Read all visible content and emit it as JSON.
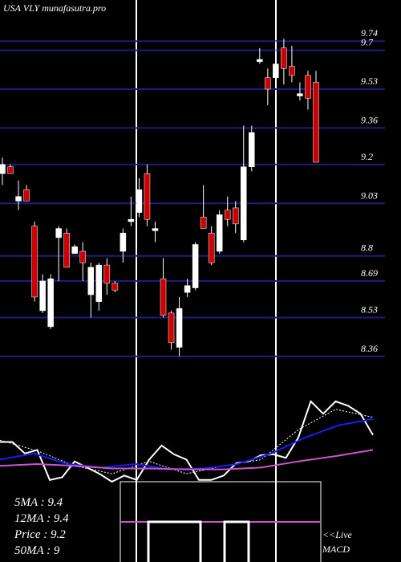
{
  "chart_data": {
    "type": "candlestick",
    "title": "USA VLY munafasutra.pro",
    "ylim": [
      8.3,
      9.92
    ],
    "yticks": [
      9.74,
      9.7,
      9.53,
      9.36,
      9.2,
      9.03,
      8.8,
      8.69,
      8.53,
      8.36
    ],
    "grid": true,
    "grid_color": "#1c1c80",
    "up_color": "#ffffff",
    "down_color": "#cc0000",
    "candles": [
      [
        9.16,
        9.23,
        9.11,
        9.2
      ],
      [
        9.19,
        9.2,
        9.16,
        9.16
      ],
      [
        9.04,
        9.13,
        9.0,
        9.06
      ],
      [
        9.09,
        9.11,
        9.04,
        9.04
      ],
      [
        8.93,
        8.95,
        8.6,
        8.62
      ],
      [
        8.56,
        8.72,
        8.55,
        8.69
      ],
      [
        8.49,
        8.72,
        8.48,
        8.7
      ],
      [
        8.88,
        8.93,
        8.69,
        8.92
      ],
      [
        8.9,
        8.92,
        8.75,
        8.75
      ],
      [
        8.81,
        8.85,
        8.81,
        8.84
      ],
      [
        8.82,
        8.86,
        8.69,
        8.77
      ],
      [
        8.63,
        8.77,
        8.53,
        8.75
      ],
      [
        8.6,
        8.77,
        8.56,
        8.76
      ],
      [
        8.76,
        8.79,
        8.63,
        8.68
      ],
      [
        8.68,
        8.69,
        8.64,
        8.65
      ],
      [
        8.82,
        8.92,
        8.77,
        8.9
      ],
      [
        8.95,
        9.06,
        8.93,
        8.96
      ],
      [
        8.99,
        9.14,
        8.97,
        9.09
      ],
      [
        9.16,
        9.2,
        8.93,
        8.96
      ],
      [
        8.91,
        8.95,
        8.86,
        8.92
      ],
      [
        8.7,
        8.79,
        8.53,
        8.54
      ],
      [
        8.55,
        8.56,
        8.39,
        8.42
      ],
      [
        8.4,
        8.62,
        8.36,
        8.57
      ],
      [
        8.64,
        8.7,
        8.62,
        8.67
      ],
      [
        8.66,
        8.86,
        8.65,
        8.85
      ],
      [
        8.97,
        9.11,
        8.92,
        8.92
      ],
      [
        8.9,
        8.93,
        8.76,
        8.77
      ],
      [
        8.82,
        9.0,
        8.81,
        8.98
      ],
      [
        9.0,
        9.06,
        8.93,
        8.96
      ],
      [
        9.01,
        9.04,
        8.9,
        8.94
      ],
      [
        8.87,
        9.37,
        8.86,
        9.19
      ],
      [
        9.19,
        9.37,
        9.17,
        9.34
      ],
      [
        9.65,
        9.71,
        9.64,
        9.66
      ],
      [
        9.58,
        9.62,
        9.46,
        9.53
      ],
      [
        9.58,
        9.74,
        9.55,
        9.64
      ],
      [
        9.71,
        9.75,
        9.55,
        9.62
      ],
      [
        9.63,
        9.72,
        9.56,
        9.59
      ],
      [
        9.5,
        9.56,
        9.48,
        9.51
      ],
      [
        9.59,
        9.61,
        9.44,
        9.49
      ],
      [
        9.56,
        9.61,
        9.21,
        9.21
      ]
    ],
    "macd_series": [
      {
        "color": "#ffffff",
        "values": [
          45,
          45,
          32,
          36,
          2,
          5,
          23,
          16,
          9,
          0,
          7,
          2,
          25,
          41,
          31,
          25,
          2,
          2,
          7,
          21,
          23,
          30,
          31,
          27,
          50,
          91,
          77,
          91,
          86,
          77,
          53
        ]
      },
      {
        "color": "#ffffff",
        "dashed": true,
        "values": [
          47,
          35,
          18,
          9,
          23,
          9,
          18,
          25,
          59,
          82,
          73
        ]
      },
      {
        "color": "#1a1aff",
        "values": [
          25,
          32,
          20,
          16,
          20,
          14,
          15,
          20,
          32,
          50,
          64,
          71
        ]
      },
      {
        "color": "#cc55cc",
        "values": [
          18,
          20,
          18,
          15,
          15,
          14,
          14,
          16,
          23,
          29,
          36
        ]
      }
    ],
    "stats": [
      "5MA : 9.4",
      "12MA : 9.4",
      "Price  : 9.2",
      "50MA : 9"
    ],
    "live_label": "<<Live",
    "macd_label": "MACD"
  }
}
